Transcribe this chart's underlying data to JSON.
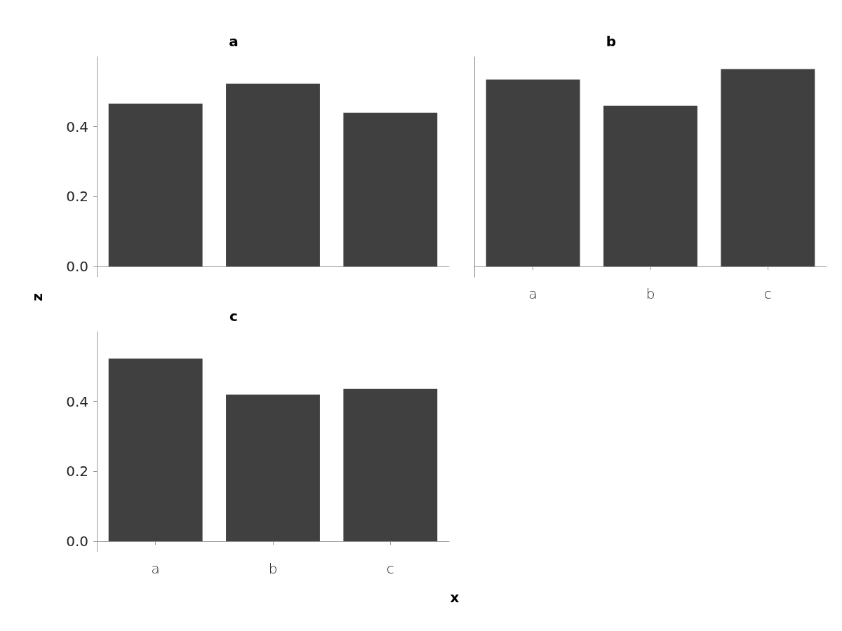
{
  "chart_data": [
    {
      "type": "bar",
      "title": "a",
      "ylabel": "z",
      "categories": [
        null,
        null,
        null
      ],
      "values": [
        0.466,
        0.523,
        0.44
      ],
      "color": "#404040",
      "ylim": [
        -0.03,
        0.6
      ],
      "yticks": [
        {
          "value": 0,
          "label": "0.0"
        },
        {
          "value": 0.2,
          "label": "0.2"
        },
        {
          "value": 0.4,
          "label": "0.4"
        }
      ],
      "tick_labels": "y"
    },
    {
      "type": "bar",
      "title": "b",
      "categories": [
        "a",
        "b",
        "c"
      ],
      "values": [
        0.535,
        0.46,
        0.565
      ],
      "color": "#404040",
      "ylim": [
        -0.03,
        0.6
      ],
      "tick_labels": "x"
    },
    {
      "type": "bar",
      "title": "c",
      "xlabel": "x",
      "categories": [
        "a",
        "b",
        "c"
      ],
      "values": [
        0.523,
        0.42,
        0.436
      ],
      "color": "#404040",
      "ylim": [
        -0.03,
        0.6
      ],
      "yticks": [
        {
          "value": 0,
          "label": "0.0"
        },
        {
          "value": 0.2,
          "label": "0.2"
        },
        {
          "value": 0.4,
          "label": "0.4"
        }
      ]
    }
  ]
}
